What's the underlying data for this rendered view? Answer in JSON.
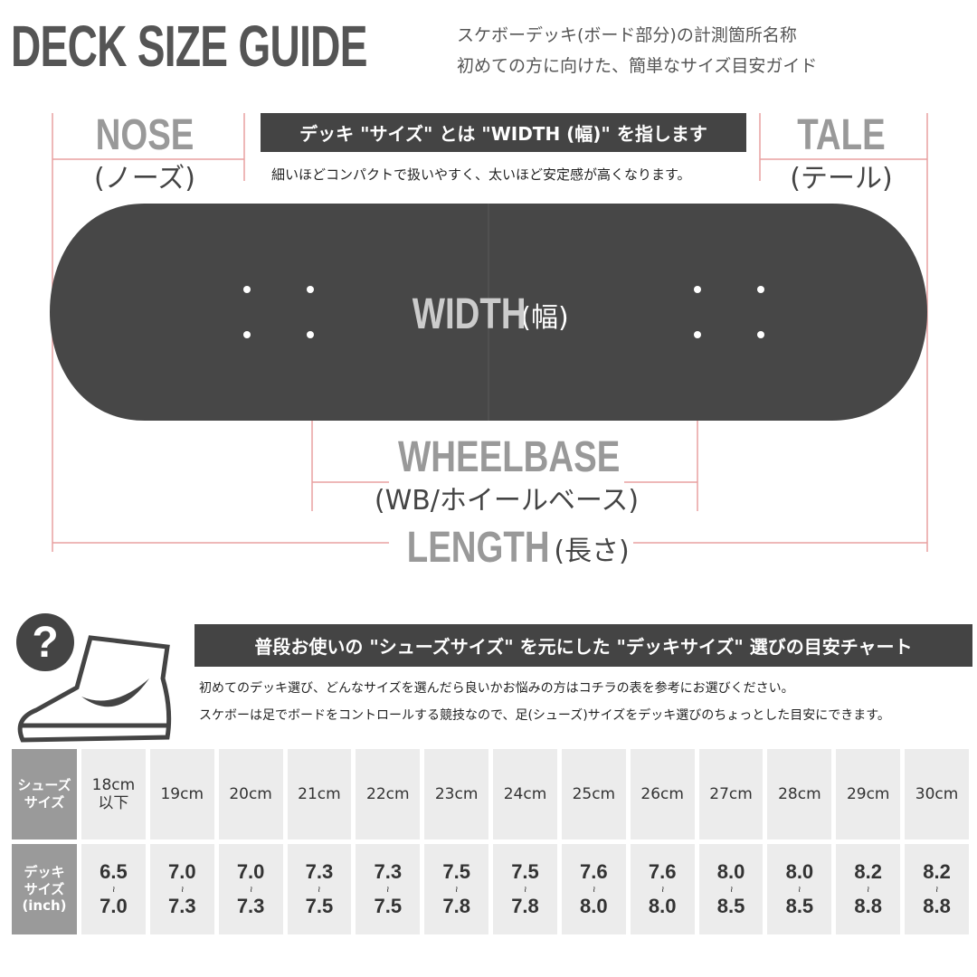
{
  "header": {
    "title": "DECK SIZE GUIDE",
    "subtitle_lines": [
      "スケボーデッキ(ボード部分)の計測箇所名称",
      "初めての方に向けた、簡単なサイズ目安ガイド"
    ]
  },
  "diagram": {
    "nose": {
      "label": "NOSE",
      "sub": "(ノーズ)"
    },
    "tail": {
      "label": "TALE",
      "sub": "(テール)"
    },
    "banner": "デッキ \"サイズ\" とは \"WIDTH (幅)\" を指します",
    "banner_note": "細いほどコンパクトで扱いやすく、太いほど安定感が高くなります。",
    "width": {
      "label": "WIDTH",
      "sub": "(幅)"
    },
    "wheelbase": {
      "label": "WHEELBASE",
      "sub": "(WB/ホイールベース)"
    },
    "length": {
      "label": "LENGTH",
      "sub": "(長さ)"
    }
  },
  "chart_section": {
    "icon": "?",
    "banner": "普段お使いの \"シューズサイズ\" を元にした \"デッキサイズ\" 選びの目安チャート",
    "notes": [
      "初めてのデッキ選び、どんなサイズを選んだら良いかお悩みの方はコチラの表を参考にお選びください。",
      "スケボーは足でボードをコントロールする競技なので、足(シューズ)サイズをデッキ選びのちょっとした目安にできます。"
    ]
  },
  "table": {
    "row_headers": [
      "シューズ\nサイズ",
      "デッキ\nサイズ\n(inch)"
    ],
    "range_separator": "~",
    "shoe_sizes": [
      "18cm\n以下",
      "19cm",
      "20cm",
      "21cm",
      "22cm",
      "23cm",
      "24cm",
      "25cm",
      "26cm",
      "27cm",
      "28cm",
      "29cm",
      "30cm"
    ],
    "deck_sizes": [
      [
        "6.5",
        "7.0"
      ],
      [
        "7.0",
        "7.3"
      ],
      [
        "7.0",
        "7.3"
      ],
      [
        "7.3",
        "7.5"
      ],
      [
        "7.3",
        "7.5"
      ],
      [
        "7.5",
        "7.8"
      ],
      [
        "7.5",
        "7.8"
      ],
      [
        "7.6",
        "8.0"
      ],
      [
        "7.6",
        "8.0"
      ],
      [
        "8.0",
        "8.5"
      ],
      [
        "8.0",
        "8.5"
      ],
      [
        "8.2",
        "8.8"
      ],
      [
        "8.2",
        "8.8"
      ]
    ]
  }
}
